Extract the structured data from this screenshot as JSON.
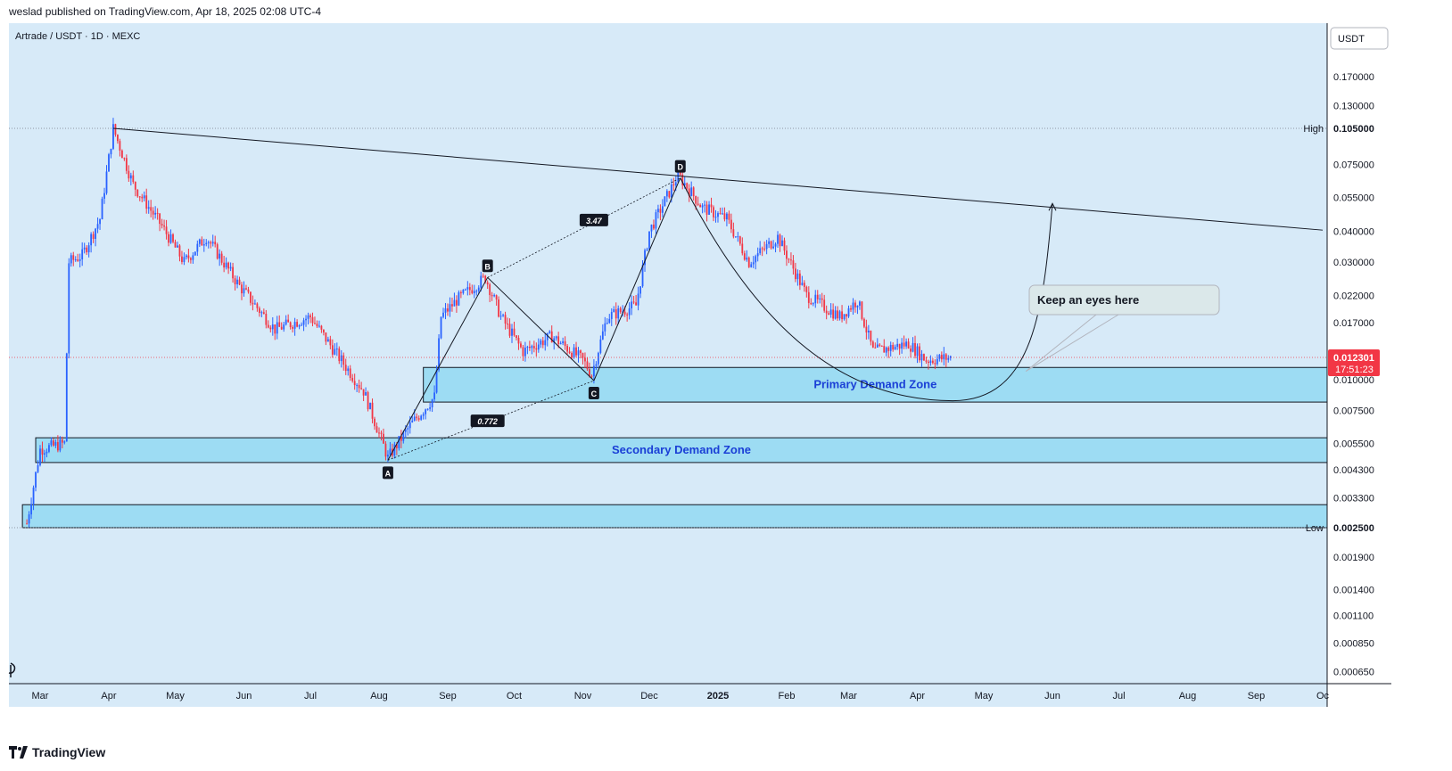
{
  "header": {
    "published": "weslad published on TradingView.com, Apr 18, 2025 02:08 UTC-4"
  },
  "symbol_line": "Artrade / USDT · 1D · MEXC",
  "currency_button": "USDT",
  "footer": {
    "brand": "TradingView"
  },
  "colors": {
    "background": "#d7eaf8",
    "up_candle": "#2962ff",
    "down_candle": "#f23645",
    "zone_fill": "#9ddcf3",
    "zone_stroke": "#131722",
    "price_line": "#f23645",
    "zone_label": "#1a3fd6"
  },
  "chart_data": {
    "type": "candlestick",
    "title": "Artrade / USDT · 1D · MEXC",
    "y_scale": "log",
    "currency": "USDT",
    "x_tick_labels": [
      "Mar",
      "Apr",
      "May",
      "Jun",
      "Jul",
      "Aug",
      "Sep",
      "Oct",
      "Nov",
      "Dec",
      "2025",
      "Feb",
      "Mar",
      "Apr",
      "May",
      "Jun",
      "Jul",
      "Aug",
      "Sep",
      "Oc"
    ],
    "y_tick_labels": [
      "0.170000",
      "0.130000",
      "0.105000",
      "0.075000",
      "0.055000",
      "0.040000",
      "0.030000",
      "0.022000",
      "0.017000",
      "0.010000",
      "0.007500",
      "0.005500",
      "0.004300",
      "0.003300",
      "0.002500",
      "0.001900",
      "0.001400",
      "0.001100",
      "0.000850",
      "0.000650"
    ],
    "y_ticks": [
      0.17,
      0.13,
      0.105,
      0.075,
      0.055,
      0.04,
      0.03,
      0.022,
      0.017,
      0.01,
      0.0075,
      0.0055,
      0.0043,
      0.0033,
      0.0025,
      0.0019,
      0.0014,
      0.0011,
      0.00085,
      0.00065
    ],
    "x_dates": [
      "2024-03-01",
      "2024-04-01",
      "2024-05-01",
      "2024-06-01",
      "2024-07-01",
      "2024-08-01",
      "2024-09-01",
      "2024-10-01",
      "2024-11-01",
      "2024-12-01",
      "2025-01-01",
      "2025-02-01",
      "2025-03-01",
      "2025-04-01",
      "2025-05-01",
      "2025-06-01",
      "2025-07-01",
      "2025-08-01",
      "2025-09-01",
      "2025-10-01"
    ],
    "price_path": [
      {
        "date": "2024-02-24",
        "price": 0.0026
      },
      {
        "date": "2024-03-01",
        "price": 0.0052
      },
      {
        "date": "2024-03-12",
        "price": 0.0055
      },
      {
        "date": "2024-03-14",
        "price": 0.03
      },
      {
        "date": "2024-03-20",
        "price": 0.032
      },
      {
        "date": "2024-03-28",
        "price": 0.045
      },
      {
        "date": "2024-04-03",
        "price": 0.105
      },
      {
        "date": "2024-04-12",
        "price": 0.062
      },
      {
        "date": "2024-04-25",
        "price": 0.042
      },
      {
        "date": "2024-05-05",
        "price": 0.03
      },
      {
        "date": "2024-05-15",
        "price": 0.038
      },
      {
        "date": "2024-05-30",
        "price": 0.024
      },
      {
        "date": "2024-06-15",
        "price": 0.016
      },
      {
        "date": "2024-07-01",
        "price": 0.018
      },
      {
        "date": "2024-07-12",
        "price": 0.013
      },
      {
        "date": "2024-07-25",
        "price": 0.009
      },
      {
        "date": "2024-08-05",
        "price": 0.0048
      },
      {
        "date": "2024-08-15",
        "price": 0.0065
      },
      {
        "date": "2024-08-26",
        "price": 0.0085
      },
      {
        "date": "2024-08-29",
        "price": 0.018
      },
      {
        "date": "2024-09-05",
        "price": 0.021
      },
      {
        "date": "2024-09-18",
        "price": 0.026
      },
      {
        "date": "2024-09-25",
        "price": 0.018
      },
      {
        "date": "2024-10-05",
        "price": 0.013
      },
      {
        "date": "2024-10-18",
        "price": 0.015
      },
      {
        "date": "2024-11-01",
        "price": 0.012
      },
      {
        "date": "2024-11-05",
        "price": 0.0105
      },
      {
        "date": "2024-11-12",
        "price": 0.018
      },
      {
        "date": "2024-11-25",
        "price": 0.02
      },
      {
        "date": "2024-12-01",
        "price": 0.04
      },
      {
        "date": "2024-12-14",
        "price": 0.068
      },
      {
        "date": "2024-12-25",
        "price": 0.05
      },
      {
        "date": "2025-01-05",
        "price": 0.045
      },
      {
        "date": "2025-01-15",
        "price": 0.03
      },
      {
        "date": "2025-01-28",
        "price": 0.038
      },
      {
        "date": "2025-02-10",
        "price": 0.022
      },
      {
        "date": "2025-02-25",
        "price": 0.018
      },
      {
        "date": "2025-03-05",
        "price": 0.021
      },
      {
        "date": "2025-03-12",
        "price": 0.013
      },
      {
        "date": "2025-03-28",
        "price": 0.014
      },
      {
        "date": "2025-04-05",
        "price": 0.012
      },
      {
        "date": "2025-04-17",
        "price": 0.0123
      }
    ],
    "last_price": "0.012301",
    "countdown": "17:51:23",
    "high_label": "High",
    "high_value": "0.105000",
    "low_label": "Low",
    "low_value": "0.002500",
    "zones": [
      {
        "label": "Primary Demand Zone",
        "from_date": "2024-08-21",
        "top": 0.0112,
        "bottom": 0.0081
      },
      {
        "label": "Secondary Demand Zone",
        "from_date": "2024-02-28",
        "top": 0.0058,
        "bottom": 0.0046
      },
      {
        "label": "",
        "from_date": "2024-02-22",
        "top": 0.0031,
        "bottom": 0.0025
      }
    ],
    "pattern_points": [
      {
        "label": "A",
        "date": "2024-08-05",
        "price": 0.0047
      },
      {
        "label": "B",
        "date": "2024-09-19",
        "price": 0.026
      },
      {
        "label": "C",
        "date": "2024-11-06",
        "price": 0.0099
      },
      {
        "label": "D",
        "date": "2024-12-15",
        "price": 0.066
      }
    ],
    "ratios": [
      {
        "label": "3.47",
        "date": "2024-11-06",
        "price": 0.0445
      },
      {
        "label": "0.772",
        "date": "2024-09-19",
        "price": 0.0068
      }
    ],
    "trendline": {
      "from": {
        "date": "2024-04-03",
        "price": 0.105
      },
      "to": {
        "date": "2025-10-01",
        "price": 0.0405
      }
    },
    "projection_curve": {
      "start": {
        "date": "2024-12-15",
        "price": 0.066
      },
      "bottom": {
        "date": "2025-04-17",
        "price": 0.0082
      },
      "end": {
        "date": "2025-06-01",
        "price": 0.052
      }
    },
    "callout": {
      "text": "Keep an eyes here",
      "pointer": {
        "date": "2025-05-20",
        "price": 0.0108
      }
    }
  }
}
